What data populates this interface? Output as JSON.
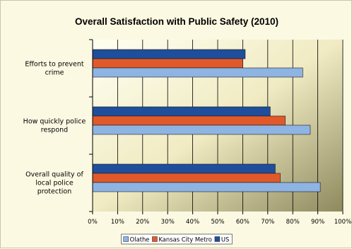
{
  "chart_data": {
    "type": "bar",
    "orientation": "horizontal",
    "title": "Overall Satisfaction with Public Safety (2010)",
    "categories": [
      "Efforts to prevent crime",
      "How quickly police respond",
      "Overall quality of local police protection"
    ],
    "category_lines": [
      [
        "Efforts to prevent",
        "crime"
      ],
      [
        "How quickly police",
        "respond"
      ],
      [
        "Overall quality of",
        "local police",
        "protection"
      ]
    ],
    "series": [
      {
        "name": "Olathe",
        "values": [
          84,
          87,
          91
        ],
        "color": "#8eb4e3"
      },
      {
        "name": "Kansas City Metro",
        "values": [
          60,
          77,
          75
        ],
        "color": "#e0592b"
      },
      {
        "name": "US",
        "values": [
          61,
          71,
          73
        ],
        "color": "#1f4e9c"
      }
    ],
    "bar_order_top_to_bottom": [
      "US",
      "Kansas City Metro",
      "Olathe"
    ],
    "xlim": [
      0,
      100
    ],
    "x_ticks": [
      "0%",
      "10%",
      "20%",
      "30%",
      "40%",
      "50%",
      "60%",
      "70%",
      "80%",
      "90%",
      "100%"
    ],
    "grid": true,
    "legend_position": "bottom",
    "plot_background": "gradient pale yellow to olive"
  }
}
